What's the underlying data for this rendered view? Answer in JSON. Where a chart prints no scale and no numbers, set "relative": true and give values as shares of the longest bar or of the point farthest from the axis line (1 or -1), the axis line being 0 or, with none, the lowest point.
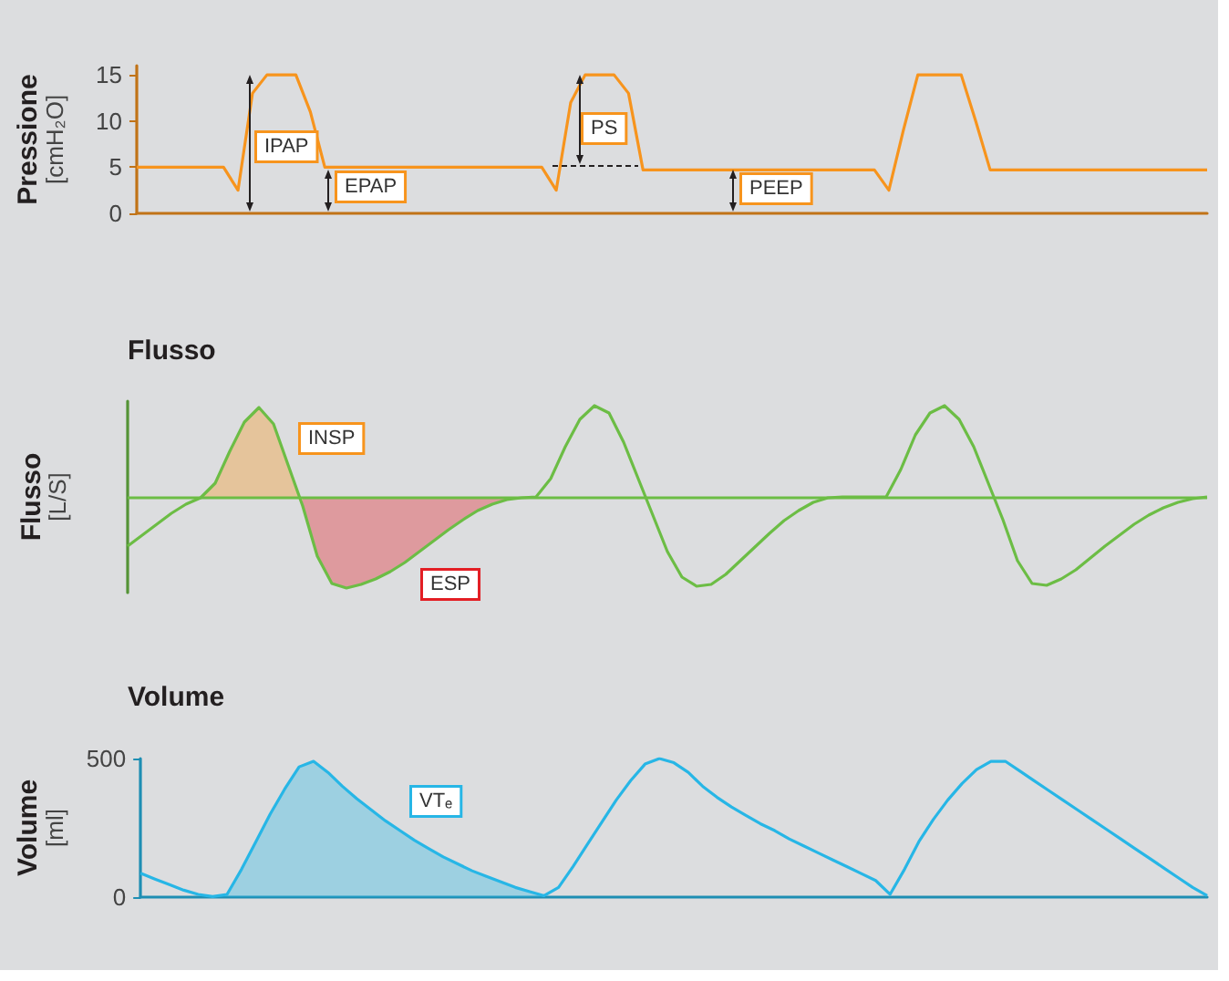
{
  "chart_data": [
    {
      "type": "line",
      "ylabel": "Pressione [cmH₂O]",
      "ylim": [
        0,
        16
      ],
      "yticks": [
        0,
        5,
        10,
        15
      ],
      "tick_labels": "y",
      "categories": [
        null,
        null,
        null,
        null,
        null,
        null,
        null,
        null,
        null,
        null,
        null,
        null,
        null,
        null,
        null,
        null,
        null,
        null,
        null,
        null,
        null,
        null,
        null,
        null,
        null,
        null,
        null,
        null,
        null,
        null,
        null,
        null,
        null,
        null,
        null,
        null,
        null,
        null,
        null,
        null,
        null,
        null,
        null,
        null,
        null,
        null,
        null,
        null,
        null,
        null,
        null,
        null,
        null,
        null,
        null,
        null,
        null,
        null,
        null,
        null,
        null,
        null,
        null,
        null,
        null,
        null,
        null,
        null,
        null,
        null,
        null,
        null,
        null,
        null,
        null
      ],
      "series": [
        {
          "color": "#f7941d",
          "values": [
            5,
            5,
            5,
            5,
            5,
            5,
            5,
            2.5,
            13,
            15,
            15,
            15,
            11,
            5,
            5,
            5,
            5,
            5,
            5,
            5,
            5,
            5,
            5,
            5,
            5,
            5,
            5,
            5,
            5,
            2.5,
            12,
            15,
            15,
            15,
            13,
            4.7,
            4.7,
            4.7,
            4.7,
            4.7,
            4.7,
            4.7,
            4.7,
            4.7,
            4.7,
            4.7,
            4.7,
            4.7,
            4.7,
            4.7,
            4.7,
            4.7,
            2.5,
            9,
            15,
            15,
            15,
            15,
            10,
            4.7,
            4.7,
            4.7,
            4.7,
            4.7,
            4.7,
            4.7,
            4.7,
            4.7,
            4.7,
            4.7,
            4.7,
            4.7,
            4.7,
            4.7,
            4.7
          ]
        }
      ],
      "annotations": [
        "IPAP",
        "EPAP",
        "PS",
        "PEEP"
      ]
    },
    {
      "type": "line",
      "title": "Flusso",
      "ylabel": "Flusso [L/S]",
      "relative": true,
      "tick_labels": false,
      "categories": [
        null,
        null,
        null,
        null,
        null,
        null,
        null,
        null,
        null,
        null,
        null,
        null,
        null,
        null,
        null,
        null,
        null,
        null,
        null,
        null,
        null,
        null,
        null,
        null,
        null,
        null,
        null,
        null,
        null,
        null,
        null,
        null,
        null,
        null,
        null,
        null,
        null,
        null,
        null,
        null,
        null,
        null,
        null,
        null,
        null,
        null,
        null,
        null,
        null,
        null,
        null,
        null,
        null,
        null,
        null,
        null,
        null,
        null,
        null,
        null,
        null,
        null,
        null,
        null,
        null,
        null,
        null,
        null,
        null,
        null,
        null,
        null,
        null,
        null,
        null
      ],
      "series": [
        {
          "color": "#6cbd45",
          "values": [
            -0.54,
            -0.42,
            -0.3,
            -0.18,
            -0.08,
            -0.01,
            0.15,
            0.5,
            0.82,
            0.98,
            0.8,
            0.35,
            -0.1,
            -0.65,
            -0.95,
            -1,
            -0.96,
            -0.9,
            -0.82,
            -0.72,
            -0.6,
            -0.48,
            -0.36,
            -0.25,
            -0.15,
            -0.08,
            -0.03,
            -0.01,
            0,
            0.2,
            0.55,
            0.85,
            1,
            0.92,
            0.6,
            0.2,
            -0.2,
            -0.6,
            -0.88,
            -0.98,
            -0.96,
            -0.85,
            -0.7,
            -0.55,
            -0.4,
            -0.26,
            -0.15,
            -0.06,
            -0.01,
            0,
            0,
            0,
            0,
            0.3,
            0.68,
            0.92,
            1,
            0.85,
            0.55,
            0.15,
            -0.25,
            -0.7,
            -0.95,
            -0.97,
            -0.9,
            -0.8,
            -0.67,
            -0.54,
            -0.42,
            -0.3,
            -0.2,
            -0.12,
            -0.06,
            -0.02,
            0
          ]
        },
        {
          "type": "area",
          "color": "#f7941d",
          "values": [
            null,
            null,
            null,
            null,
            null,
            -0.01,
            0.15,
            0.5,
            0.82,
            0.98,
            0.8,
            0.35,
            -0.1,
            null,
            null,
            null,
            null,
            null,
            null,
            null,
            null,
            null,
            null,
            null,
            null,
            null,
            null,
            null,
            null,
            null,
            null,
            null,
            null,
            null,
            null,
            null,
            null,
            null,
            null,
            null,
            null,
            null,
            null,
            null,
            null,
            null,
            null,
            null,
            null,
            null,
            null,
            null,
            null,
            null,
            null,
            null,
            null,
            null,
            null,
            null,
            null,
            null,
            null,
            null,
            null,
            null,
            null,
            null,
            null,
            null,
            null,
            null,
            null,
            null,
            null
          ]
        },
        {
          "type": "area",
          "color": "#e31e24",
          "values": [
            null,
            null,
            null,
            null,
            null,
            null,
            null,
            null,
            null,
            null,
            null,
            null,
            -0.1,
            -0.65,
            -0.95,
            -1,
            -0.96,
            -0.9,
            -0.82,
            -0.72,
            -0.6,
            -0.48,
            -0.36,
            -0.25,
            -0.15,
            -0.08,
            -0.03,
            -0.01,
            0,
            null,
            null,
            null,
            null,
            null,
            null,
            null,
            null,
            null,
            null,
            null,
            null,
            null,
            null,
            null,
            null,
            null,
            null,
            null,
            null,
            null,
            null,
            null,
            null,
            null,
            null,
            null,
            null,
            null,
            null,
            null,
            null,
            null,
            null,
            null,
            null,
            null,
            null,
            null,
            null,
            null,
            null,
            null,
            null,
            null,
            null
          ]
        }
      ],
      "ref_lines": [
        {
          "axis": "y",
          "value": 0,
          "color": "#6cbd45"
        }
      ],
      "annotations": [
        "INSP",
        "ESP"
      ]
    },
    {
      "type": "line",
      "title": "Volume",
      "ylabel": "Volume [ml]",
      "ylim": [
        0,
        500
      ],
      "yticks": [
        0,
        500
      ],
      "tick_labels": "y",
      "categories": [
        null,
        null,
        null,
        null,
        null,
        null,
        null,
        null,
        null,
        null,
        null,
        null,
        null,
        null,
        null,
        null,
        null,
        null,
        null,
        null,
        null,
        null,
        null,
        null,
        null,
        null,
        null,
        null,
        null,
        null,
        null,
        null,
        null,
        null,
        null,
        null,
        null,
        null,
        null,
        null,
        null,
        null,
        null,
        null,
        null,
        null,
        null,
        null,
        null,
        null,
        null,
        null,
        null,
        null,
        null,
        null,
        null,
        null,
        null,
        null,
        null,
        null,
        null,
        null,
        null,
        null,
        null,
        null,
        null,
        null,
        null,
        null,
        null,
        null,
        null
      ],
      "series": [
        {
          "color": "#27b6e6",
          "values": [
            86,
            65,
            45,
            25,
            10,
            2,
            10,
            100,
            200,
            300,
            390,
            470,
            490,
            450,
            400,
            355,
            315,
            275,
            240,
            205,
            175,
            145,
            120,
            95,
            75,
            55,
            35,
            20,
            5,
            35,
            110,
            190,
            270,
            350,
            420,
            480,
            500,
            485,
            450,
            400,
            360,
            325,
            295,
            265,
            240,
            210,
            185,
            160,
            135,
            110,
            85,
            60,
            10,
            100,
            200,
            280,
            350,
            410,
            460,
            490,
            490,
            455,
            420,
            385,
            350,
            315,
            280,
            245,
            210,
            175,
            140,
            105,
            70,
            35,
            5
          ]
        },
        {
          "type": "area",
          "color": "#27b6e6",
          "values": [
            null,
            null,
            null,
            null,
            null,
            2,
            10,
            100,
            200,
            300,
            390,
            470,
            490,
            450,
            400,
            355,
            315,
            275,
            240,
            205,
            175,
            145,
            120,
            95,
            75,
            55,
            35,
            20,
            5,
            null,
            null,
            null,
            null,
            null,
            null,
            null,
            null,
            null,
            null,
            null,
            null,
            null,
            null,
            null,
            null,
            null,
            null,
            null,
            null,
            null,
            null,
            null,
            null,
            null,
            null,
            null,
            null,
            null,
            null,
            null,
            null,
            null,
            null,
            null,
            null,
            null,
            null,
            null,
            null,
            null,
            null,
            null,
            null,
            null,
            null
          ]
        }
      ],
      "annotations": [
        "VTₑ"
      ]
    }
  ]
}
